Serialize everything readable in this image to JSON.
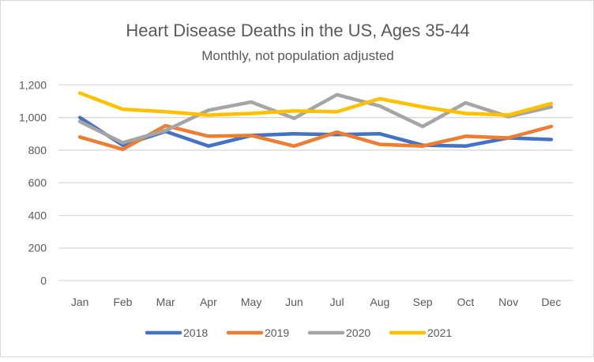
{
  "chart_data": {
    "type": "line",
    "title": "Heart Disease Deaths in the US, Ages 35-44",
    "subtitle": "Monthly, not population adjusted",
    "xlabel": "",
    "ylabel": "",
    "categories": [
      "Jan",
      "Feb",
      "Mar",
      "Apr",
      "May",
      "Jun",
      "Jul",
      "Aug",
      "Sep",
      "Oct",
      "Nov",
      "Dec"
    ],
    "ylim": [
      0,
      1200
    ],
    "yticks": [
      0,
      200,
      400,
      600,
      800,
      1000,
      1200
    ],
    "ytick_labels": [
      "0",
      "200",
      "400",
      "600",
      "800",
      "1,000",
      "1,200"
    ],
    "grid": true,
    "legend_position": "bottom",
    "series": [
      {
        "name": "2018",
        "color": "#4472C4",
        "values": [
          1000,
          830,
          915,
          825,
          890,
          900,
          895,
          900,
          830,
          825,
          875,
          865
        ]
      },
      {
        "name": "2019",
        "color": "#ED7D31",
        "values": [
          880,
          805,
          950,
          885,
          890,
          825,
          910,
          835,
          825,
          885,
          875,
          945
        ]
      },
      {
        "name": "2020",
        "color": "#A5A5A5",
        "values": [
          975,
          845,
          920,
          1045,
          1095,
          995,
          1140,
          1070,
          945,
          1090,
          1005,
          1065
        ]
      },
      {
        "name": "2021",
        "color": "#FFC000",
        "values": [
          1150,
          1050,
          1035,
          1015,
          1025,
          1040,
          1035,
          1115,
          1065,
          1025,
          1015,
          1085
        ]
      }
    ]
  }
}
